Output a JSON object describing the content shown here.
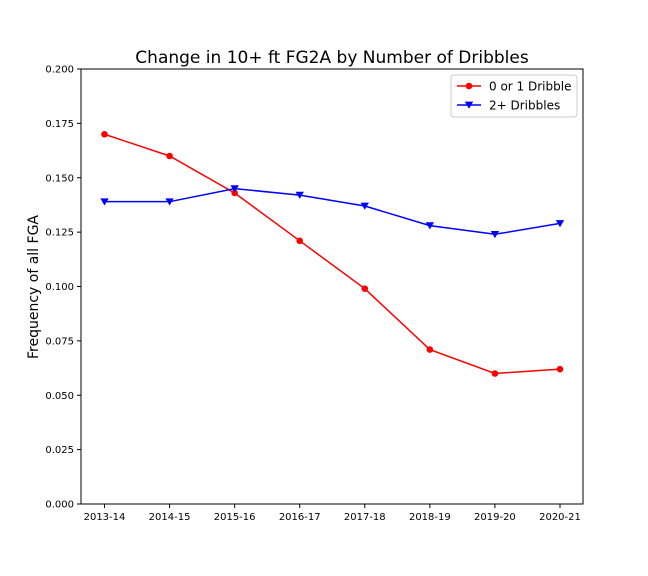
{
  "chart_data": {
    "type": "line",
    "title": "Change in 10+ ft FG2A by Number of Dribbles",
    "xlabel": "",
    "ylabel": "Frequency of all FGA",
    "categories": [
      "2013-14",
      "2014-15",
      "2015-16",
      "2016-17",
      "2017-18",
      "2018-19",
      "2019-20",
      "2020-21"
    ],
    "ylim": [
      0,
      0.2
    ],
    "yticks": [
      "0.000",
      "0.025",
      "0.050",
      "0.075",
      "0.100",
      "0.125",
      "0.150",
      "0.175",
      "0.200"
    ],
    "grid": false,
    "legend_position": "top-right",
    "series": [
      {
        "name": "0 or 1 Dribble",
        "color": "#ff0000",
        "marker": "circle",
        "values": [
          0.17,
          0.16,
          0.143,
          0.121,
          0.099,
          0.071,
          0.06,
          0.062
        ]
      },
      {
        "name": "2+ Dribbles",
        "color": "#0000ff",
        "marker": "triangle-down",
        "values": [
          0.139,
          0.139,
          0.145,
          0.142,
          0.137,
          0.128,
          0.124,
          0.129
        ]
      }
    ]
  }
}
